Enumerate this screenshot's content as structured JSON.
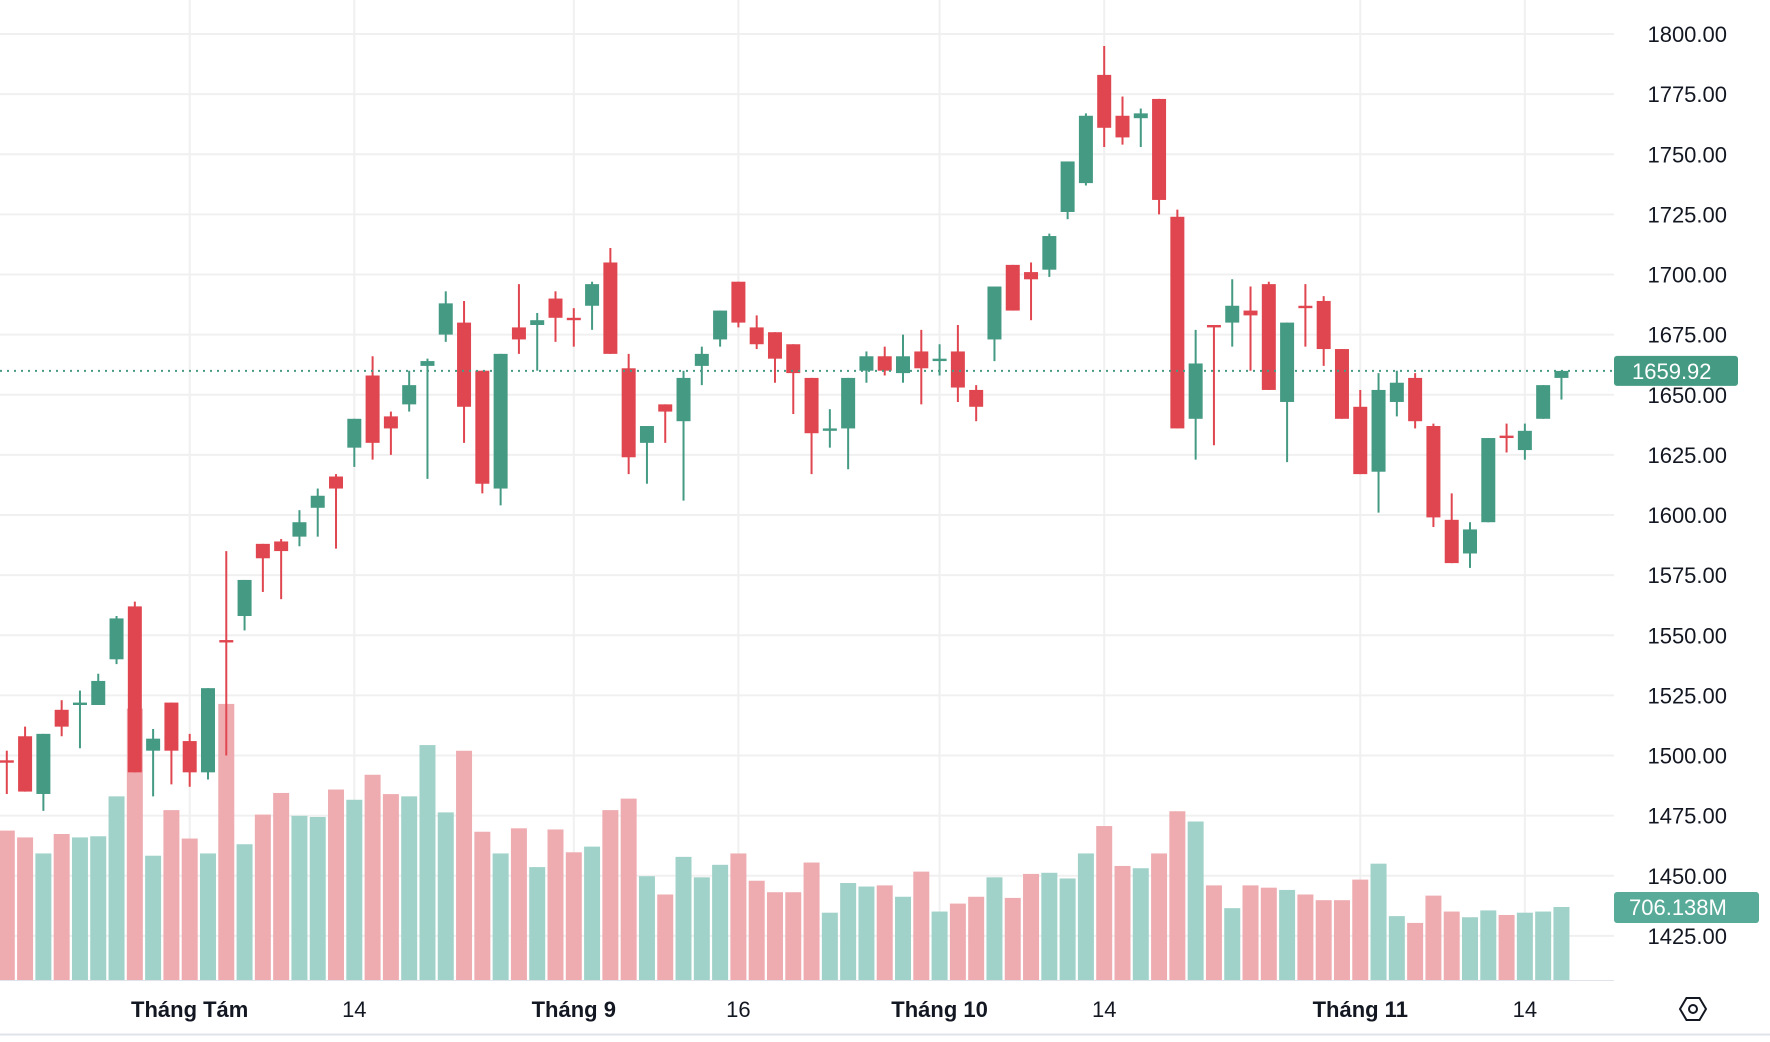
{
  "chart_data": {
    "type": "candlestick",
    "y_ticks": [
      "1800.00",
      "1775.00",
      "1750.00",
      "1725.00",
      "1700.00",
      "1675.00",
      "1650.00",
      "1625.00",
      "1600.00",
      "1575.00",
      "1550.00",
      "1525.00",
      "1500.00",
      "1475.00",
      "1450.00",
      "1425.00"
    ],
    "ylim": [
      1425,
      1800
    ],
    "x_labels": [
      {
        "text": "Tháng Tám",
        "index": 10,
        "bold": true
      },
      {
        "text": "14",
        "index": 19,
        "bold": false
      },
      {
        "text": "Tháng 9",
        "index": 31,
        "bold": true
      },
      {
        "text": "16",
        "index": 40,
        "bold": false
      },
      {
        "text": "Tháng 10",
        "index": 51,
        "bold": true
      },
      {
        "text": "14",
        "index": 60,
        "bold": false
      },
      {
        "text": "Tháng 11",
        "index": 74,
        "bold": true
      },
      {
        "text": "14",
        "index": 83,
        "bold": false
      }
    ],
    "ohlc": [
      [
        1498,
        1502,
        1484,
        1497
      ],
      [
        1508,
        1512,
        1485,
        1485
      ],
      [
        1484,
        1509,
        1477,
        1509
      ],
      [
        1519,
        1523,
        1508,
        1512
      ],
      [
        1521,
        1527,
        1503,
        1522
      ],
      [
        1521,
        1534,
        1521,
        1531
      ],
      [
        1540,
        1558,
        1538,
        1557
      ],
      [
        1562,
        1564,
        1493,
        1493
      ],
      [
        1502,
        1511,
        1483,
        1507
      ],
      [
        1522,
        1522,
        1488,
        1502
      ],
      [
        1506,
        1509,
        1487,
        1493
      ],
      [
        1493,
        1528,
        1490,
        1528
      ],
      [
        1548,
        1585,
        1500,
        1547
      ],
      [
        1558,
        1573,
        1552,
        1573
      ],
      [
        1588,
        1588,
        1568,
        1582
      ],
      [
        1589,
        1590,
        1565,
        1585
      ],
      [
        1591,
        1602,
        1587,
        1597
      ],
      [
        1603,
        1611,
        1591,
        1608
      ],
      [
        1616,
        1617,
        1586,
        1611
      ],
      [
        1628,
        1640,
        1620,
        1640
      ],
      [
        1658,
        1666,
        1623,
        1630
      ],
      [
        1641,
        1643,
        1625,
        1636
      ],
      [
        1646,
        1660,
        1643,
        1654
      ],
      [
        1662,
        1665,
        1615,
        1664
      ],
      [
        1675,
        1693,
        1672,
        1688
      ],
      [
        1680,
        1689,
        1630,
        1645
      ],
      [
        1660,
        1660,
        1609,
        1613
      ],
      [
        1611,
        1667,
        1604,
        1667
      ],
      [
        1678,
        1696,
        1667,
        1673
      ],
      [
        1679,
        1684,
        1660,
        1681
      ],
      [
        1690,
        1693,
        1672,
        1682
      ],
      [
        1682,
        1686,
        1670,
        1681
      ],
      [
        1687,
        1697,
        1677,
        1696
      ],
      [
        1705,
        1711,
        1667,
        1667
      ],
      [
        1661,
        1667,
        1617,
        1624
      ],
      [
        1630,
        1637,
        1613,
        1637
      ],
      [
        1646,
        1646,
        1630,
        1643
      ],
      [
        1639,
        1660,
        1606,
        1657
      ],
      [
        1662,
        1670,
        1654,
        1667
      ],
      [
        1673,
        1685,
        1670,
        1685
      ],
      [
        1697,
        1697,
        1678,
        1680
      ],
      [
        1678,
        1683,
        1669,
        1671
      ],
      [
        1676,
        1676,
        1655,
        1665
      ],
      [
        1671,
        1671,
        1642,
        1659
      ],
      [
        1657,
        1657,
        1617,
        1634
      ],
      [
        1635,
        1644,
        1628,
        1636
      ],
      [
        1636,
        1657,
        1619,
        1657
      ],
      [
        1660,
        1668,
        1655,
        1666
      ],
      [
        1666,
        1670,
        1658,
        1660
      ],
      [
        1659,
        1675,
        1655,
        1666
      ],
      [
        1668,
        1677,
        1646,
        1661
      ],
      [
        1664,
        1671,
        1658,
        1665
      ],
      [
        1668,
        1679,
        1647,
        1653
      ],
      [
        1652,
        1654,
        1639,
        1645
      ],
      [
        1673,
        1695,
        1664,
        1695
      ],
      [
        1704,
        1704,
        1685,
        1685
      ],
      [
        1701,
        1705,
        1681,
        1698
      ],
      [
        1702,
        1717,
        1699,
        1716
      ],
      [
        1726,
        1747,
        1723,
        1747
      ],
      [
        1738,
        1767,
        1737,
        1766
      ],
      [
        1783,
        1795,
        1753,
        1761
      ],
      [
        1766,
        1774,
        1754,
        1757
      ],
      [
        1765,
        1769,
        1753,
        1767
      ],
      [
        1773,
        1773,
        1725,
        1731
      ],
      [
        1724,
        1727,
        1636,
        1636
      ],
      [
        1640,
        1677,
        1623,
        1663
      ],
      [
        1679,
        1679,
        1629,
        1678
      ],
      [
        1680,
        1698,
        1670,
        1687
      ],
      [
        1685,
        1695,
        1660,
        1683
      ],
      [
        1696,
        1697,
        1652,
        1652
      ],
      [
        1647,
        1680,
        1622,
        1680
      ],
      [
        1687,
        1696,
        1670,
        1686
      ],
      [
        1689,
        1691,
        1662,
        1669
      ],
      [
        1669,
        1669,
        1640,
        1640
      ],
      [
        1645,
        1652,
        1617,
        1617
      ],
      [
        1618,
        1659,
        1601,
        1652
      ],
      [
        1647,
        1660,
        1641,
        1655
      ],
      [
        1657,
        1659,
        1636,
        1639
      ],
      [
        1637,
        1638,
        1595,
        1599
      ],
      [
        1598,
        1609,
        1580,
        1580
      ],
      [
        1584,
        1597,
        1578,
        1594
      ],
      [
        1597,
        1632,
        1597,
        1632
      ],
      [
        1633,
        1638,
        1626,
        1632
      ],
      [
        1627,
        1638,
        1623,
        1635
      ],
      [
        1640,
        1654,
        1640,
        1654
      ],
      [
        1657,
        1660,
        1648,
        1659.92
      ]
    ],
    "volume_millions": [
      1445,
      1379,
      1224,
      1412,
      1379,
      1390,
      1776,
      2625,
      1202,
      1643,
      1368,
      1224,
      2670,
      1313,
      1600,
      1809,
      1588,
      1577,
      1842,
      1743,
      1985,
      1798,
      1776,
      2272,
      1621,
      2217,
      1434,
      1224,
      1467,
      1092,
      1456,
      1235,
      1290,
      1643,
      1754,
      1004,
      827,
      1191,
      993,
      1114,
      1224,
      960,
      849,
      849,
      1136,
      651,
      938,
      904,
      915,
      805,
      1048,
      662,
      739,
      805,
      993,
      794,
      1026,
      1037,
      982,
      1224,
      1489,
      1103,
      1081,
      1224,
      1632,
      1533,
      915,
      695,
      915,
      893,
      871,
      827,
      772,
      772,
      971,
      1125,
      618,
      552,
      816,
      662,
      607,
      673,
      629,
      651,
      662,
      706.138
    ],
    "last_price_label": "1659.92",
    "last_price": 1659.92,
    "last_volume_label": "706.138M",
    "last_volume": 706.138,
    "colors": {
      "up": "#459a83",
      "down": "#e0464f",
      "up_volume": "#a1d2c9",
      "down_volume": "#eeacb1",
      "grid": "#f0f0f0",
      "price_tag": "#459a83",
      "volume_tag": "#58ab98"
    }
  },
  "settings_icon": "hexagon-settings-icon"
}
